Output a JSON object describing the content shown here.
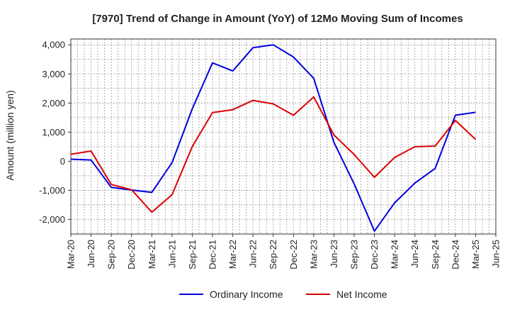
{
  "chart_data": {
    "type": "line",
    "title": "[7970]  Trend of Change in Amount (YoY) of 12Mo Moving Sum of Incomes",
    "xlabel": "",
    "ylabel": "Amount (million yen)",
    "ylim": [
      -2500,
      4200
    ],
    "yticks": [
      -2000,
      -1000,
      0,
      1000,
      2000,
      3000,
      4000
    ],
    "ytick_labels": [
      "-2,000",
      "-1,000",
      "0",
      "1,000",
      "2,000",
      "3,000",
      "4,000"
    ],
    "x_tick_labels": [
      "Mar-20",
      "Jun-20",
      "Sep-20",
      "Dec-20",
      "Mar-21",
      "Jun-21",
      "Sep-21",
      "Dec-21",
      "Mar-22",
      "Jun-22",
      "Sep-22",
      "Dec-22",
      "Mar-23",
      "Jun-23",
      "Sep-23",
      "Dec-23",
      "Mar-24",
      "Jun-24",
      "Sep-24",
      "Dec-24",
      "Mar-25",
      "Jun-25"
    ],
    "grid": true,
    "legend_position": "bottom",
    "series": [
      {
        "name": "Ordinary Income",
        "color": "#0000dd",
        "values": [
          70,
          40,
          -900,
          -990,
          -1070,
          -50,
          1800,
          3380,
          3100,
          3900,
          4000,
          3580,
          2850,
          650,
          -780,
          -2400,
          -1430,
          -750,
          -250,
          1580,
          1680
        ]
      },
      {
        "name": "Net Income",
        "color": "#dd0000",
        "values": [
          240,
          350,
          -800,
          -980,
          -1750,
          -1150,
          500,
          1670,
          1770,
          2090,
          1970,
          1580,
          2210,
          900,
          230,
          -550,
          130,
          500,
          520,
          1400,
          750
        ]
      }
    ]
  }
}
